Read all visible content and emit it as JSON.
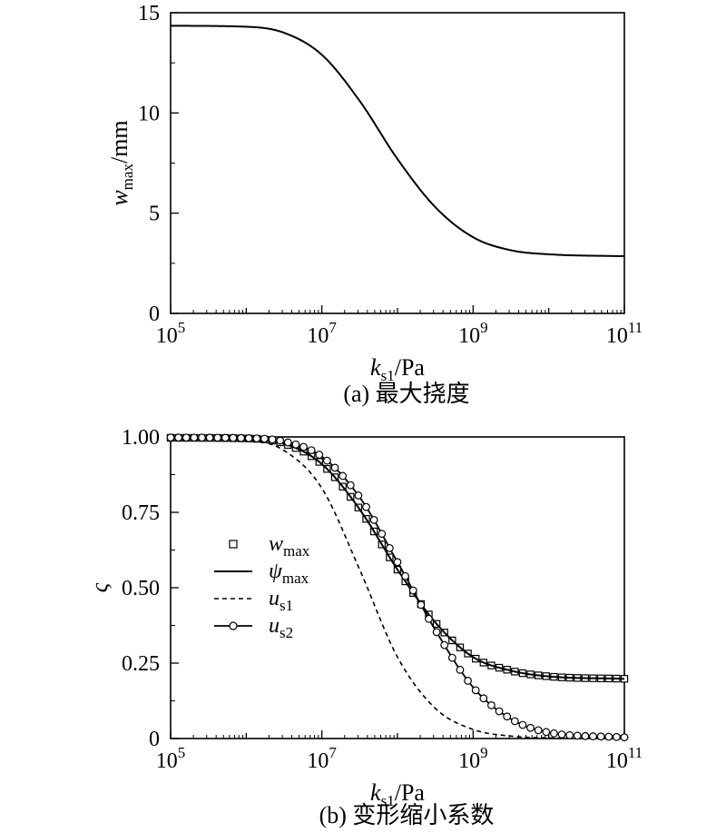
{
  "chart_data": [
    {
      "type": "line",
      "caption": "(a) 最大挠度",
      "xlabel": {
        "main": "k",
        "sub": "s1",
        "unit": "/Pa"
      },
      "ylabel": {
        "main": "w",
        "sub": "max",
        "unit": "/mm"
      },
      "x_scale": "log",
      "xlim": [
        100000,
        100000000000
      ],
      "ylim": [
        0,
        15
      ],
      "x_ticks": [
        {
          "base": "10",
          "exp": "5",
          "value": 100000
        },
        {
          "base": "10",
          "exp": "7",
          "value": 10000000
        },
        {
          "base": "10",
          "exp": "9",
          "value": 1000000000
        },
        {
          "base": "10",
          "exp": "11",
          "value": 100000000000
        }
      ],
      "y_ticks": [
        "0",
        "5",
        "10",
        "15"
      ],
      "series": [
        {
          "style": "solid",
          "x": [
            100000,
            1000000,
            3162278,
            10000000,
            31622777,
            100000000,
            316227766,
            1000000000,
            3162277660,
            10000000000,
            100000000000
          ],
          "y": [
            14.35,
            14.3,
            14.0,
            12.9,
            10.6,
            7.7,
            5.3,
            3.8,
            3.15,
            2.95,
            2.85
          ]
        }
      ]
    },
    {
      "type": "line",
      "caption": "(b) 变形缩小系数",
      "xlabel": {
        "main": "k",
        "sub": "s1",
        "unit": "/Pa"
      },
      "ylabel": {
        "main": "ς",
        "sub": "",
        "unit": ""
      },
      "x_scale": "log",
      "xlim": [
        100000,
        100000000000
      ],
      "ylim": [
        0,
        1.0
      ],
      "x_ticks": [
        {
          "base": "10",
          "exp": "5",
          "value": 100000
        },
        {
          "base": "10",
          "exp": "7",
          "value": 10000000
        },
        {
          "base": "10",
          "exp": "9",
          "value": 1000000000
        },
        {
          "base": "10",
          "exp": "11",
          "value": 100000000000
        }
      ],
      "y_ticks": [
        "0",
        "0.25",
        "0.50",
        "0.75",
        "1.00"
      ],
      "legend_position": "left-middle",
      "series": [
        {
          "name_main": "w",
          "name_sub": "max",
          "style": "squares",
          "x": [
            100000,
            1000000,
            3162278,
            10000000,
            31622777,
            100000000,
            316227766,
            1000000000,
            3162277660,
            10000000000,
            100000000000
          ],
          "y": [
            0.997,
            0.995,
            0.978,
            0.91,
            0.76,
            0.56,
            0.385,
            0.27,
            0.225,
            0.206,
            0.198
          ]
        },
        {
          "name_main": "ψ",
          "name_sub": "max",
          "style": "solid",
          "x": [
            100000,
            1000000,
            3162278,
            10000000,
            31622777,
            100000000,
            316227766,
            1000000000,
            3162277660,
            10000000000,
            100000000000
          ],
          "y": [
            0.997,
            0.995,
            0.978,
            0.91,
            0.76,
            0.56,
            0.385,
            0.27,
            0.225,
            0.206,
            0.198
          ]
        },
        {
          "name_main": "u",
          "name_sub": "s1",
          "style": "dashed",
          "x": [
            100000,
            1000000,
            3162278,
            10000000,
            31622777,
            100000000,
            316227766,
            1000000000,
            3162277660,
            10000000000,
            100000000000
          ],
          "y": [
            0.997,
            0.99,
            0.955,
            0.83,
            0.56,
            0.27,
            0.1,
            0.03,
            0.008,
            0.002,
            0.0
          ]
        },
        {
          "name_main": "u",
          "name_sub": "s2",
          "style": "circles",
          "x": [
            100000,
            1000000,
            3162278,
            10000000,
            31622777,
            100000000,
            316227766,
            1000000000,
            3162277660,
            10000000000,
            100000000000
          ],
          "y": [
            0.998,
            0.996,
            0.985,
            0.935,
            0.8,
            0.585,
            0.36,
            0.17,
            0.065,
            0.02,
            0.004
          ]
        }
      ]
    }
  ]
}
